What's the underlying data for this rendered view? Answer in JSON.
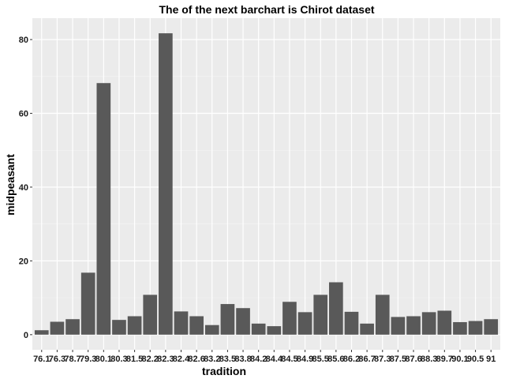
{
  "chart_data": {
    "type": "bar",
    "title": "The of the next barchart is Chirot dataset",
    "xlabel": "tradition",
    "ylabel": "midpeasant",
    "categories": [
      "76.1",
      "76.3",
      "78.7",
      "79.3",
      "80.1",
      "80.3",
      "81.5",
      "82.2",
      "82.3",
      "82.4",
      "82.6",
      "83.2",
      "83.5",
      "83.8",
      "84.2",
      "84.4",
      "84.5",
      "84.9",
      "85.5",
      "85.6",
      "86.2",
      "86.7",
      "87.3",
      "87.5",
      "87.6",
      "88.3",
      "89.7",
      "90.1",
      "90.5",
      "91"
    ],
    "values": [
      1.2,
      3.5,
      4.2,
      16.8,
      68.2,
      4.0,
      5.0,
      10.8,
      81.7,
      6.3,
      5.0,
      2.6,
      8.3,
      7.2,
      3.0,
      2.3,
      8.9,
      6.1,
      10.8,
      14.2,
      6.2,
      3.0,
      10.8,
      4.8,
      5.0,
      6.1,
      6.5,
      3.4,
      3.7,
      4.2
    ],
    "yticks": [
      0,
      20,
      40,
      60,
      80
    ],
    "ylim": [
      -4.1,
      85.8
    ],
    "grid": true,
    "legend": "none",
    "colors": {
      "bar": "#595959",
      "panel": "#ebebeb",
      "grid_major": "#ffffff",
      "grid_minor": "#f5f5f5",
      "tick": "#333333"
    }
  }
}
